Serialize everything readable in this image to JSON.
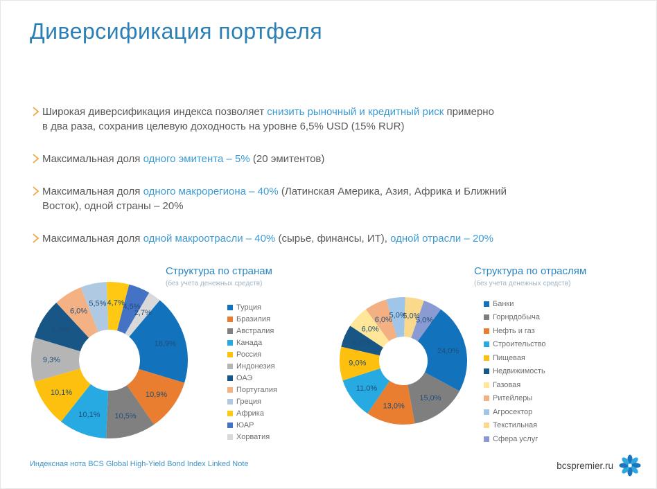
{
  "slide": {
    "title": "Диверсификация портфеля",
    "footer_note": "Индексная нота BCS Global High-Yield Bond Index Linked Note",
    "brand": "bcspremier.ru"
  },
  "colors": {
    "title": "#2b7fb4",
    "body_text": "#595959",
    "highlight": "#3d9bd4",
    "chevron": "#eda63f",
    "slice_label": "#1f4e79",
    "footer_link": "#3d93c6",
    "brand_text": "#414042",
    "logo_blue": "#1b75bc",
    "logo_light_blue": "#2fa8e0"
  },
  "bullets": [
    {
      "segments": [
        {
          "text": "Широкая диверсификация индекса позволяет ",
          "highlight": false
        },
        {
          "text": "снизить рыночный и кредитный риск",
          "highlight": true
        },
        {
          "text": " примерно\nв два раза, сохранив целевую доходность на уровне 6,5% USD (15% RUR)",
          "highlight": false
        }
      ]
    },
    {
      "segments": [
        {
          "text": "Максимальная доля ",
          "highlight": false
        },
        {
          "text": "одного эмитента – 5%",
          "highlight": true
        },
        {
          "text": " (20 эмитентов)",
          "highlight": false
        }
      ]
    },
    {
      "segments": [
        {
          "text": "Максимальная доля ",
          "highlight": false
        },
        {
          "text": "одного макрорегиона – 40%",
          "highlight": true
        },
        {
          "text": " (Латинская Америка, Азия, Африка и Ближний\nВосток), одной страны – 20%",
          "highlight": false
        }
      ]
    },
    {
      "segments": [
        {
          "text": "Максимальная доля ",
          "highlight": false
        },
        {
          "text": "одной макроотрасли – 40%",
          "highlight": true
        },
        {
          "text": " (сырье, финансы, ИТ), ",
          "highlight": false
        },
        {
          "text": "одной отрасли – 20%",
          "highlight": true
        }
      ]
    }
  ],
  "chart_data": [
    {
      "type": "pie",
      "donut": true,
      "title": "Структура по странам",
      "subtitle": "(без учета денежных средств)",
      "legend_position": "right",
      "start_angle": 40,
      "label_color": "#1f4e79",
      "series": [
        {
          "name": "Турция",
          "value": 18.9,
          "label": "18,9%",
          "color": "#1272bb"
        },
        {
          "name": "Бразилия",
          "value": 10.9,
          "label": "10,9%",
          "color": "#e97e30"
        },
        {
          "name": "Австралия",
          "value": 10.5,
          "label": "10,5%",
          "color": "#808080"
        },
        {
          "name": "Канада",
          "value": 10.1,
          "label": "10,1%",
          "color": "#27a9e1"
        },
        {
          "name": "Россия",
          "value": 10.1,
          "label": "10,1%",
          "color": "#fec00f"
        },
        {
          "name": "Индонезия",
          "value": 9.3,
          "label": "9,3%",
          "color": "#b5b5b5"
        },
        {
          "name": "ОАЭ",
          "value": 8.6,
          "label": "8,6%",
          "color": "#175685"
        },
        {
          "name": "Португалия",
          "value": 6.0,
          "label": "6,0%",
          "color": "#f4b183"
        },
        {
          "name": "Греция",
          "value": 5.5,
          "label": "5,5%",
          "color": "#afc9e2"
        },
        {
          "name": "Африка",
          "value": 4.7,
          "label": "4,7%",
          "color": "#ffc913"
        },
        {
          "name": "ЮАР",
          "value": 4.5,
          "label": "4,5%",
          "color": "#4472c4"
        },
        {
          "name": "Хорватия",
          "value": 2.7,
          "label": "2,7%",
          "color": "#d9d9d9"
        }
      ]
    },
    {
      "type": "pie",
      "donut": true,
      "title": "Структура по отраслям",
      "subtitle": "(без учета денежных средств)",
      "legend_position": "right",
      "start_angle": 36,
      "label_color": "#1f4e79",
      "series": [
        {
          "name": "Банки",
          "value": 24.0,
          "label": "24,0%",
          "color": "#1272bb"
        },
        {
          "name": "Горнрдобыча",
          "value": 15.0,
          "label": "15,0%",
          "color": "#7f7f7f"
        },
        {
          "name": "Нефть и газ",
          "value": 13.0,
          "label": "13,0%",
          "color": "#e97e30"
        },
        {
          "name": "Строительство",
          "value": 11.0,
          "label": "11,0%",
          "color": "#27a9e1"
        },
        {
          "name": "Пищевая",
          "value": 9.0,
          "label": "9,0%",
          "color": "#fec00f"
        },
        {
          "name": "Недвижимость",
          "value": 6.0,
          "label": "6,0%",
          "color": "#175685"
        },
        {
          "name": "Газовая",
          "value": 6.0,
          "label": "6,0%",
          "color": "#ffe699"
        },
        {
          "name": "Ритейлеры",
          "value": 6.0,
          "label": "6,0%",
          "color": "#f2b083"
        },
        {
          "name": "Агросектор",
          "value": 5.0,
          "label": "5,0%",
          "color": "#9fc5e8"
        },
        {
          "name": "Текстильная",
          "value": 5.0,
          "label": "5,0%",
          "color": "#fad98c"
        },
        {
          "name": "Сфера услуг",
          "value": 5.0,
          "label": "5,0%",
          "color": "#8a9bd3"
        }
      ]
    }
  ]
}
